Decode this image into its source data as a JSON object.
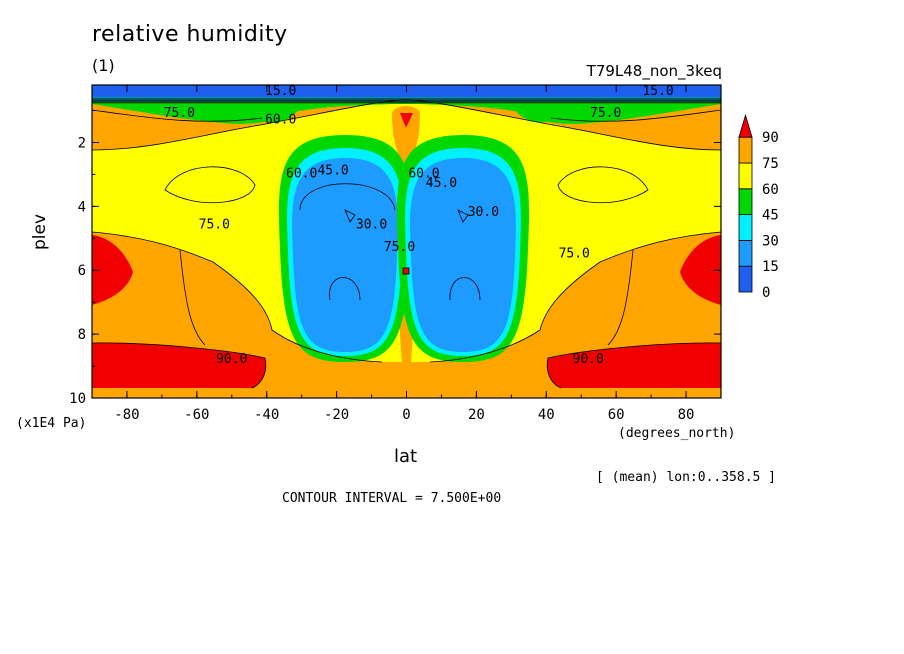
{
  "chart_data": {
    "type": "heatmap",
    "title": "relative humidity",
    "subtitle": "(1)",
    "run_label": "T79L48_non_3keq",
    "xlabel": "lat",
    "x_units": "(degrees_north)",
    "ylabel": "plev",
    "y_units": "(x1E4 Pa)",
    "xlim": [
      -90,
      90
    ],
    "ylim": [
      10,
      0.2
    ],
    "x_ticks": [
      -80,
      -60,
      -40,
      -20,
      0,
      20,
      40,
      60,
      80
    ],
    "y_ticks": [
      2,
      4,
      6,
      8,
      10
    ],
    "averaging_note": "[ (mean) lon:0..358.5 ]",
    "contour_interval": "CONTOUR INTERVAL = 7.500E+00",
    "colorbar": {
      "levels": [
        0,
        15,
        30,
        45,
        60,
        75,
        90
      ],
      "colors": [
        "#1e5ff0",
        "#1e9bff",
        "#00f0ff",
        "#00d800",
        "#ffff00",
        "#ffa500",
        "#f00000"
      ]
    },
    "contour_labels": [
      {
        "text": "15.0",
        "lat": -36,
        "p": 0.52
      },
      {
        "text": "15.0",
        "lat": 72,
        "p": 0.52
      },
      {
        "text": "75.0",
        "lat": -65,
        "p": 1.2
      },
      {
        "text": "75.0",
        "lat": 57,
        "p": 1.2
      },
      {
        "text": "60.0",
        "lat": -36,
        "p": 1.4
      },
      {
        "text": "60.0",
        "lat": -30,
        "p": 3.1
      },
      {
        "text": "45.0",
        "lat": -21,
        "p": 3.0
      },
      {
        "text": "60.0",
        "lat": 5,
        "p": 3.1
      },
      {
        "text": "45.0",
        "lat": 10,
        "p": 3.4
      },
      {
        "text": "30.0",
        "lat": -10,
        "p": 4.7
      },
      {
        "text": "30.0",
        "lat": 22,
        "p": 4.3
      },
      {
        "text": "75.0",
        "lat": -2,
        "p": 5.4
      },
      {
        "text": "75.0",
        "lat": -55,
        "p": 4.7
      },
      {
        "text": "75.0",
        "lat": 48,
        "p": 5.6
      },
      {
        "text": "90.0",
        "lat": -50,
        "p": 8.9
      },
      {
        "text": "90.0",
        "lat": 52,
        "p": 8.9
      }
    ]
  }
}
